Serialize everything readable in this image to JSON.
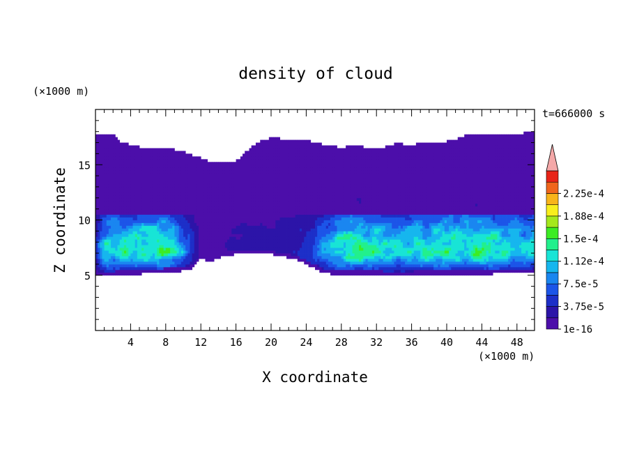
{
  "chart_data": {
    "type": "heatmap",
    "title": "density of cloud",
    "xlabel": "X coordinate",
    "ylabel": "Z coordinate",
    "x_unit": "(×1000 m)",
    "y_unit": "(×1000 m)",
    "time_label": "t=666000 s",
    "xlim": [
      0,
      50
    ],
    "ylim": [
      0,
      20
    ],
    "x_ticks": [
      4,
      8,
      12,
      16,
      20,
      24,
      28,
      32,
      36,
      40,
      44,
      48
    ],
    "y_ticks": [
      5,
      10,
      15
    ],
    "colorbar": {
      "tick_labels": [
        "1e-16",
        "3.75e-5",
        "7.5e-5",
        "1.12e-4",
        "1.5e-4",
        "1.88e-4",
        "2.25e-4"
      ],
      "levels": [
        0,
        1.875e-05,
        3.75e-05,
        5.625e-05,
        7.5e-05,
        9.375e-05,
        0.0001125,
        0.00013125,
        0.00015,
        0.00016875,
        0.0001875,
        0.00020625,
        0.000225,
        0.00024375
      ],
      "colors": [
        "#4c0eaa",
        "#2c14a8",
        "#1d2fc8",
        "#1c55e8",
        "#1a86f0",
        "#16b6ee",
        "#18e4d6",
        "#22f08c",
        "#3cec24",
        "#a4e81c",
        "#f8ee1c",
        "#f8b41a",
        "#f0661c",
        "#e82418",
        "#f4a8a8"
      ],
      "extend": "max"
    },
    "cloud_field": {
      "top_z": [
        17.8,
        17.8,
        17.8,
        17.0,
        16.8,
        16.6,
        16.6,
        16.6,
        16.6,
        16.4,
        16.2,
        15.9,
        15.6,
        15.3,
        15.3,
        15.3,
        15.3,
        16.1,
        16.8,
        17.3,
        17.4,
        17.4,
        17.2,
        17.2,
        17.2,
        17.0,
        16.8,
        16.7,
        16.5,
        16.7,
        16.7,
        16.5,
        16.5,
        16.6,
        16.9,
        16.9,
        16.7,
        17.1,
        17.1,
        17.1,
        17.1,
        17.3,
        17.6,
        17.8,
        17.8,
        17.8,
        17.7,
        17.8,
        17.8,
        17.9,
        17.9
      ],
      "base_z": [
        5.0,
        5.0,
        5.0,
        5.1,
        5.1,
        5.1,
        5.2,
        5.2,
        5.3,
        5.3,
        5.4,
        5.6,
        6.5,
        6.2,
        6.6,
        6.8,
        6.9,
        6.9,
        6.9,
        6.9,
        6.9,
        6.7,
        6.6,
        6.4,
        6.0,
        5.6,
        5.2,
        5.1,
        5.1,
        5.1,
        5.1,
        5.1,
        5.1,
        5.0,
        5.0,
        5.0,
        5.0,
        5.1,
        5.1,
        5.1,
        5.1,
        5.1,
        5.1,
        5.1,
        5.1,
        5.1,
        5.2,
        5.2,
        5.2,
        5.2,
        5.2
      ],
      "max_density": [
        3.7e-05,
        0.00011,
        0.00012,
        0.000125,
        0.00013,
        0.000135,
        0.00014,
        0.000145,
        0.000135,
        0.00012,
        9e-05,
        5e-05,
        1e-05,
        0.0,
        1e-05,
        2e-05,
        2.5e-05,
        2.5e-05,
        2.5e-05,
        2.5e-05,
        2.8e-05,
        3e-05,
        3e-05,
        4e-05,
        5e-05,
        6e-05,
        8e-05,
        0.000105,
        0.000125,
        0.000135,
        0.00014,
        0.00014,
        0.00013,
        0.000115,
        0.000105,
        0.00011,
        0.000115,
        0.000125,
        0.00013,
        0.000135,
        0.00014,
        0.00014,
        0.000135,
        0.000135,
        0.000135,
        0.00013,
        0.000125,
        0.00012,
        0.000115,
        0.00011,
        0.000105
      ],
      "core_z": 7.2
    }
  }
}
